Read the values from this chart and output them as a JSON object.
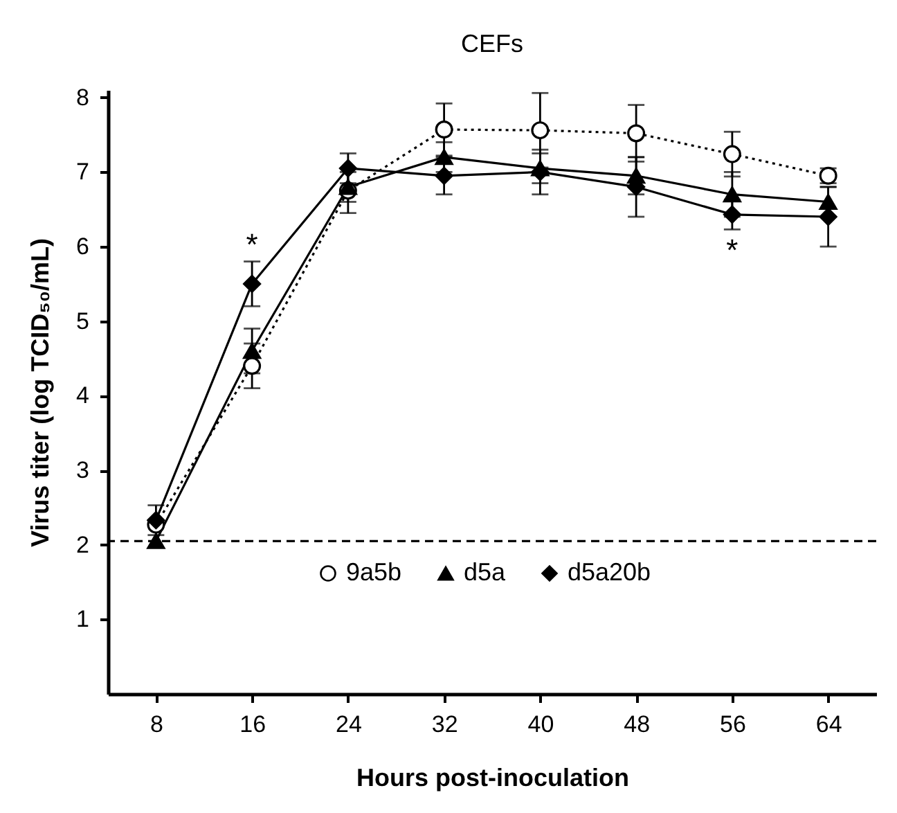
{
  "chart_data": {
    "type": "line",
    "title": "CEFs",
    "xlabel": "Hours post-inoculation",
    "ylabel": "Virus titer (log TCID₅₀/mL)",
    "x": [
      8,
      16,
      24,
      32,
      40,
      48,
      56,
      64
    ],
    "series": [
      {
        "name": "9a5b",
        "color": "#000000",
        "marker": "circle",
        "line_style": "dotted",
        "values": [
          2.27,
          4.4,
          6.75,
          7.57,
          7.56,
          7.52,
          7.24,
          6.95
        ],
        "errors": [
          null,
          0.3,
          0.3,
          0.35,
          0.5,
          0.38,
          0.3,
          0.1
        ]
      },
      {
        "name": "d5a",
        "color": "#000000",
        "marker": "triangle",
        "line_style": "solid",
        "values": [
          2.05,
          4.6,
          6.8,
          7.2,
          7.05,
          6.95,
          6.7,
          6.6
        ],
        "errors": [
          null,
          0.3,
          0.2,
          0.2,
          0.2,
          0.25,
          0.3,
          0.2
        ]
      },
      {
        "name": "d5a20b",
        "color": "#000000",
        "marker": "diamond",
        "line_style": "solid",
        "values": [
          2.33,
          5.5,
          7.05,
          6.95,
          7.0,
          6.8,
          6.43,
          6.4
        ],
        "errors": [
          0.2,
          0.3,
          0.2,
          0.25,
          0.3,
          0.4,
          0.2,
          0.4
        ]
      }
    ],
    "xlim": [
      4,
      68
    ],
    "xticks": [
      8,
      16,
      24,
      32,
      40,
      48,
      56,
      64
    ],
    "ylim": [
      0,
      8.1
    ],
    "yticks": [
      1,
      2,
      3,
      4,
      5,
      6,
      7,
      8
    ],
    "ref_lines": [
      {
        "axis": "y",
        "value": 2.05,
        "line_style": "dashed",
        "color": "#000000"
      }
    ],
    "annotations": [
      {
        "text": "*",
        "x": 16,
        "y": 5.5
      },
      {
        "text": "*",
        "x": 56,
        "y": 6.43
      }
    ],
    "legend": "bottom",
    "grid": false
  }
}
